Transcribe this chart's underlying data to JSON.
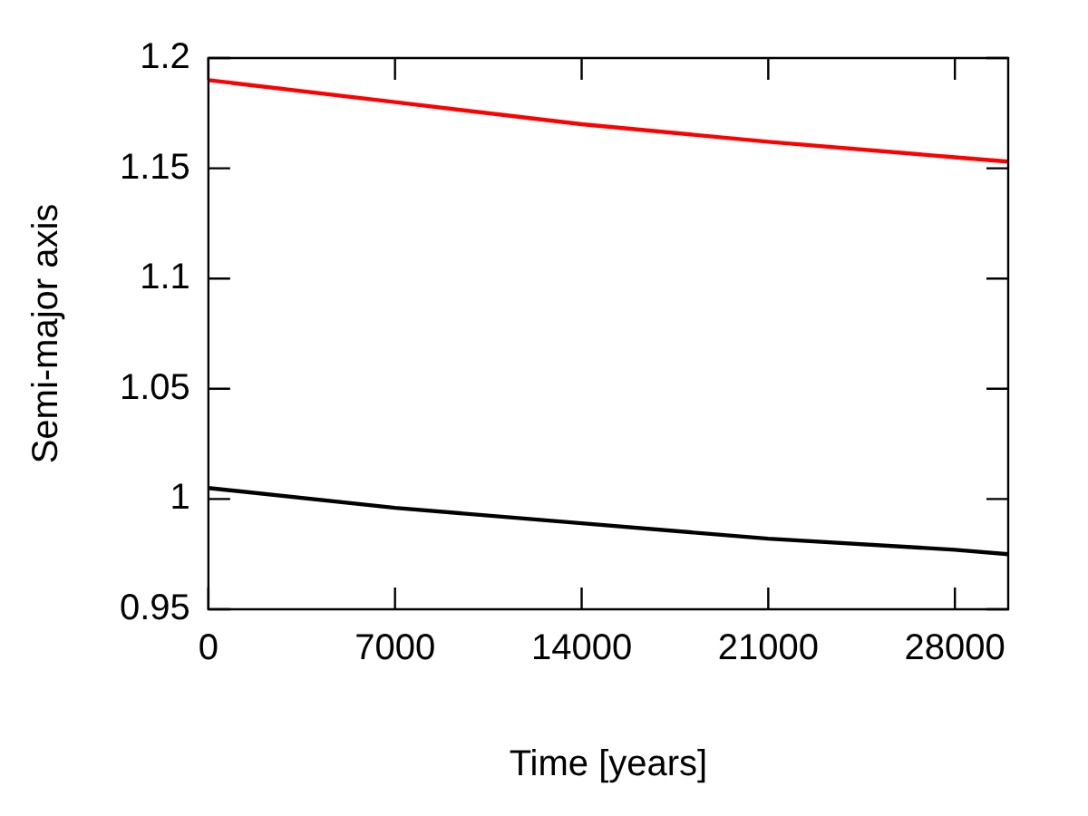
{
  "chart_data": {
    "type": "line",
    "xlabel": "Time [years]",
    "ylabel": "Semi-major axis",
    "x": [
      0,
      7000,
      14000,
      21000,
      28000,
      30000
    ],
    "series": [
      {
        "color": "#ff0000",
        "values": [
          1.19,
          1.18,
          1.17,
          1.162,
          1.155,
          1.153
        ]
      },
      {
        "color": "#000000",
        "values": [
          1.005,
          0.996,
          0.989,
          0.982,
          0.977,
          0.975
        ]
      }
    ],
    "xlim": [
      0,
      30000
    ],
    "xticks": [
      0,
      7000,
      14000,
      21000,
      28000
    ],
    "ylim": [
      0.95,
      1.2
    ],
    "yticks": [
      0.95,
      1,
      1.05,
      1.1,
      1.15,
      1.2
    ],
    "grid": false,
    "legend": false,
    "marker": "none",
    "line_style": "solid"
  }
}
